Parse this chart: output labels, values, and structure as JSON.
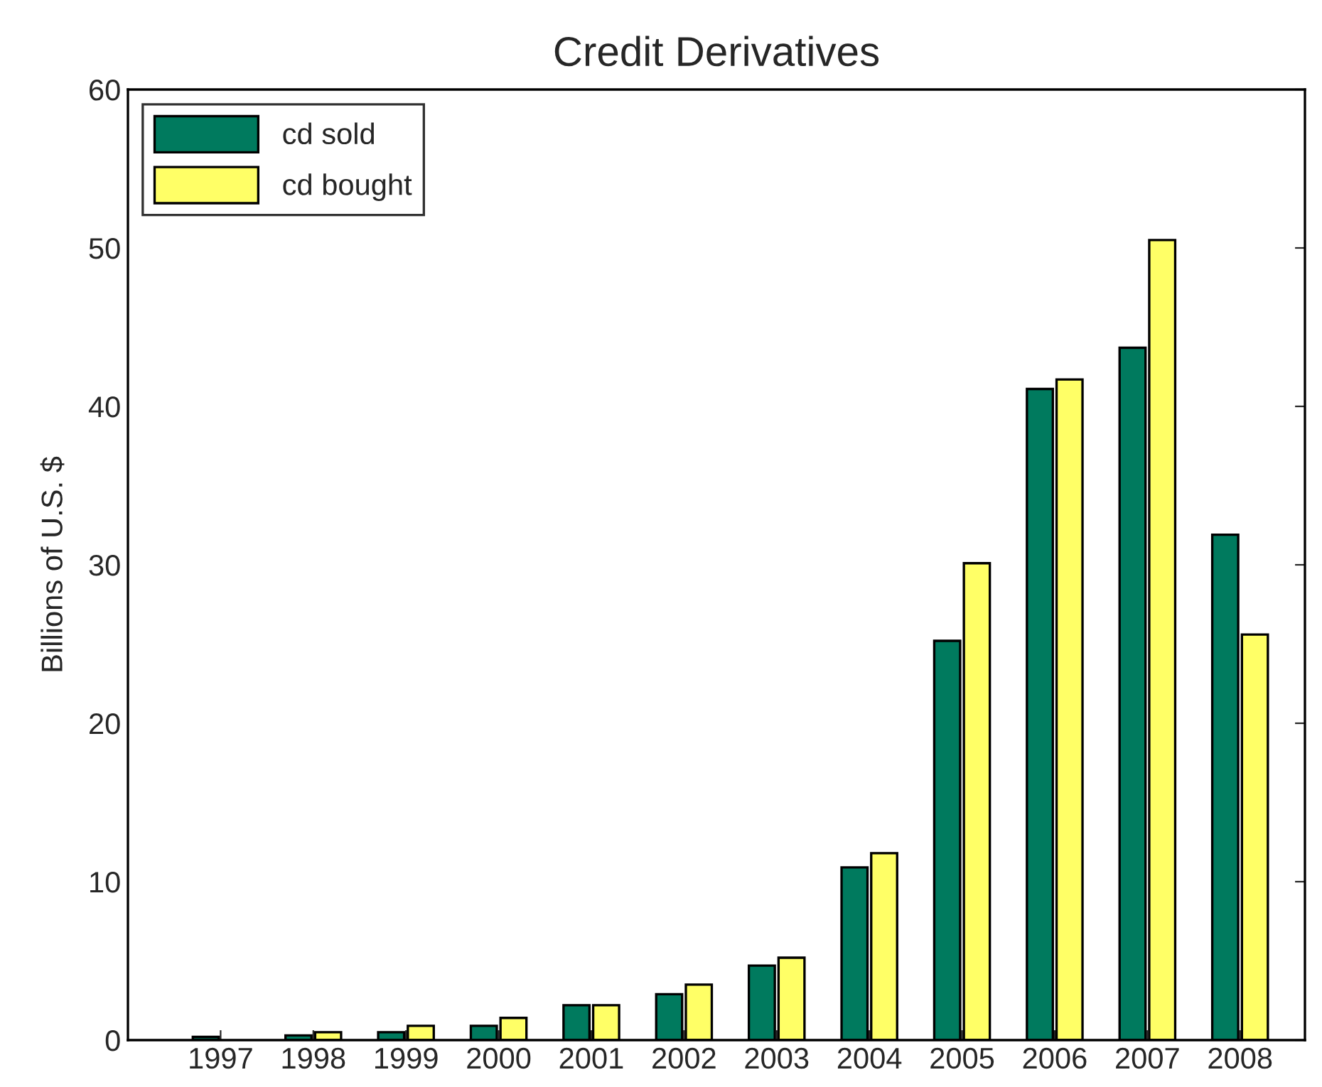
{
  "chart_data": {
    "type": "bar",
    "title": "Credit Derivatives",
    "ylabel": "Billions of U.S. $",
    "categories": [
      "1997",
      "1998",
      "1999",
      "2000",
      "2001",
      "2002",
      "2003",
      "2004",
      "2005",
      "2006",
      "2007",
      "2008"
    ],
    "series": [
      {
        "name": "cd sold",
        "color": "#007a5e",
        "values": [
          0.2,
          0.3,
          0.5,
          0.9,
          2.2,
          2.9,
          4.7,
          10.9,
          25.2,
          41.1,
          43.7,
          31.9
        ]
      },
      {
        "name": "cd bought",
        "color": "#ffff66",
        "values": [
          null,
          0.5,
          0.9,
          1.4,
          2.2,
          3.5,
          5.2,
          11.8,
          30.1,
          41.7,
          50.5,
          25.6
        ]
      }
    ],
    "ylim": [
      0,
      60
    ],
    "yticks": [
      0,
      10,
      20,
      30,
      40,
      50,
      60
    ],
    "grid": false,
    "legend": "top left"
  }
}
